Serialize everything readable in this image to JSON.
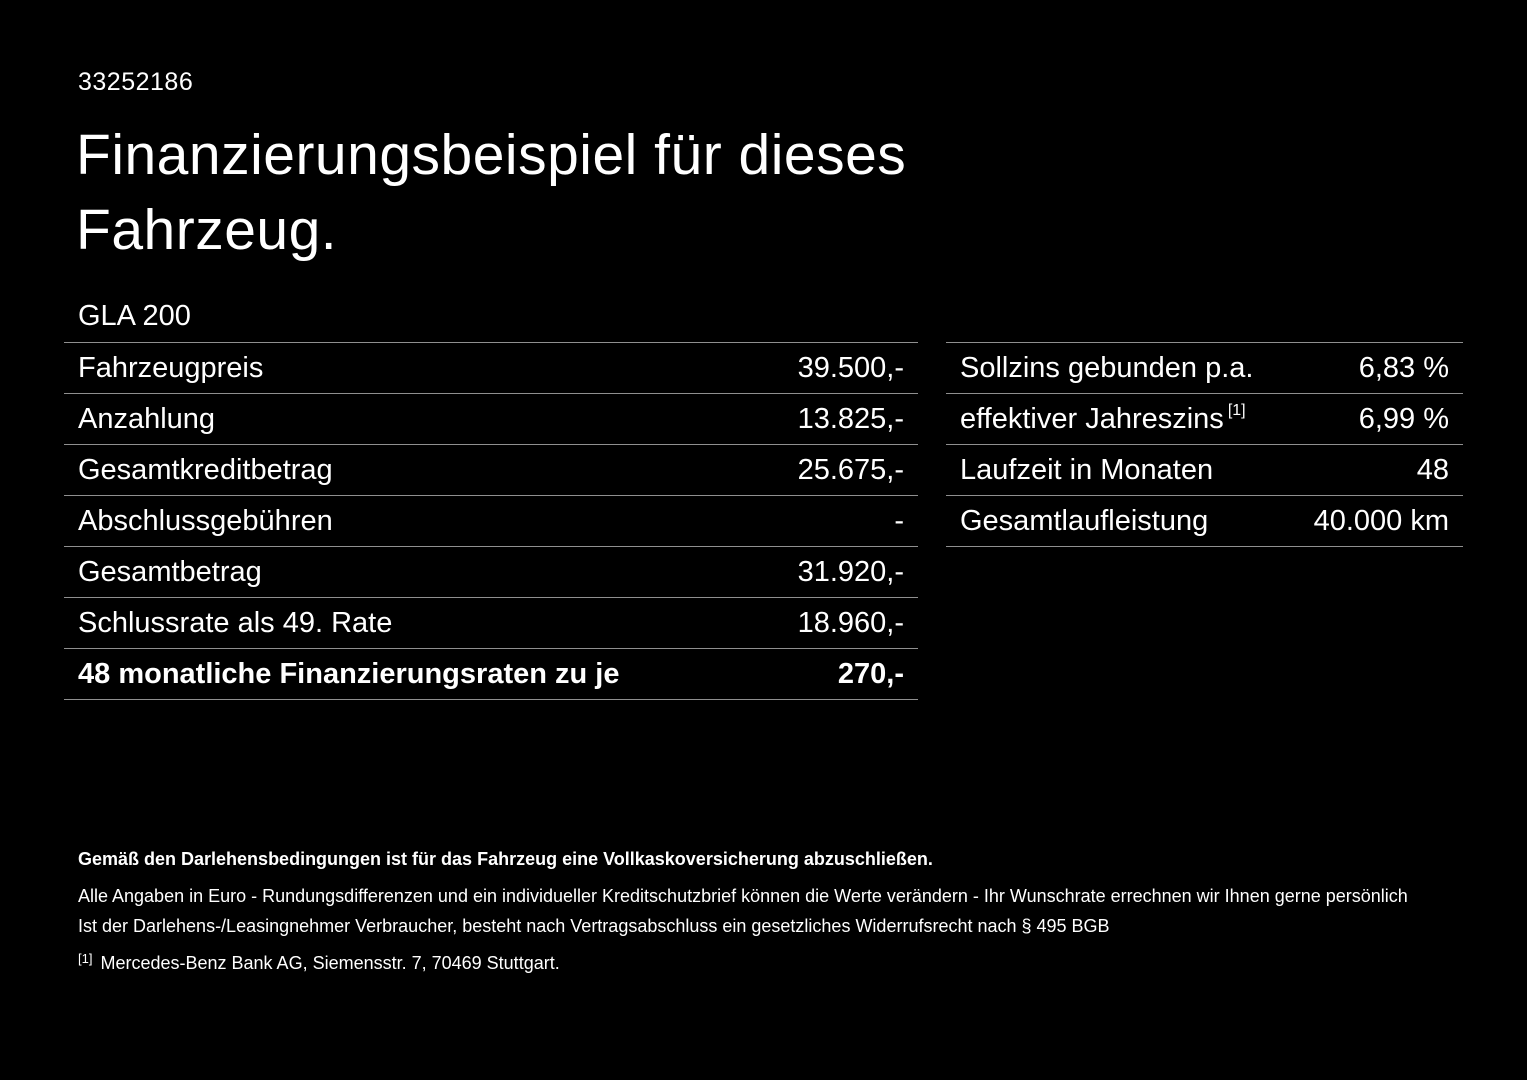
{
  "doc_id": "33252186",
  "title": "Finanzierungsbeispiel für dieses Fahrzeug.",
  "model": "GLA 200",
  "left_table": {
    "rows": [
      {
        "label": "Fahrzeugpreis",
        "value": "39.500,-"
      },
      {
        "label": "Anzahlung",
        "value": "13.825,-"
      },
      {
        "label": "Gesamtkreditbetrag",
        "value": "25.675,-"
      },
      {
        "label": "Abschlussgebühren",
        "value": "-"
      },
      {
        "label": "Gesamtbetrag",
        "value": "31.920,-"
      },
      {
        "label": "Schlussrate als 49. Rate",
        "value": "18.960,-"
      },
      {
        "label": "48 monatliche Finanzierungsraten zu je",
        "value": "270,-"
      }
    ]
  },
  "right_table": {
    "rows": [
      {
        "label": "Sollzins gebunden p.a.",
        "value": "6,83 %"
      },
      {
        "label": "effektiver Jahreszins",
        "sup": "[1]",
        "value": "6,99 %"
      },
      {
        "label": "Laufzeit in Monaten",
        "value": "48"
      },
      {
        "label": "Gesamtlaufleistung",
        "value": "40.000 km"
      }
    ]
  },
  "footer": {
    "bold_line": "Gemäß den Darlehensbedingungen ist für das Fahrzeug eine Vollkaskoversicherung abzuschließen.",
    "line2": "Alle Angaben in Euro - Rundungsdifferenzen und ein individueller Kreditschutzbrief können die Werte verändern - Ihr Wunschrate errechnen wir Ihnen gerne persönlich",
    "line3": "Ist der Darlehens-/Leasingnehmer Verbraucher, besteht nach Vertragsabschluss ein gesetzliches Widerrufsrecht nach § 495 BGB",
    "footnote_marker": "[1]",
    "footnote_text": "Mercedes-Benz Bank AG, Siemensstr. 7, 70469 Stuttgart."
  },
  "colors": {
    "background": "#000000",
    "text": "#ffffff",
    "divider": "#8f8f8f"
  }
}
